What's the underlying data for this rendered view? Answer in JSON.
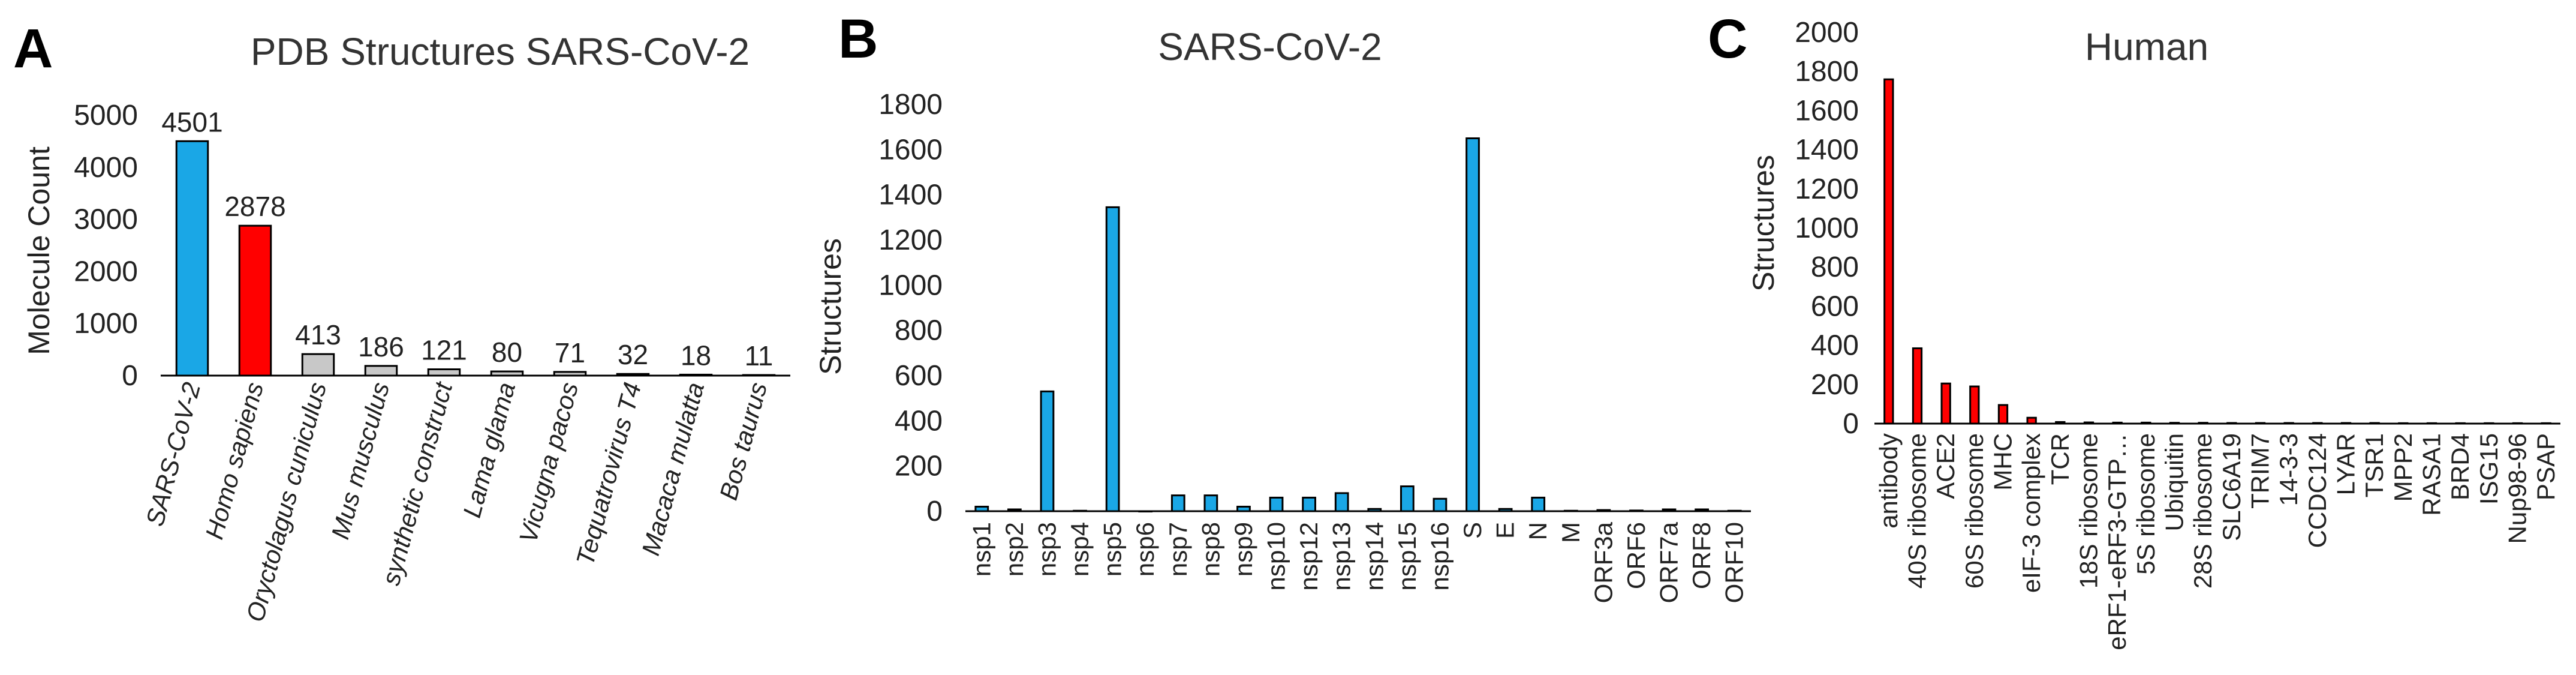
{
  "chart_data": [
    {
      "type": "bar",
      "panel": "A",
      "title": "PDB Structures SARS-CoV-2",
      "xlabel": "",
      "ylabel": "Molecule Count",
      "ylim": [
        0,
        5000
      ],
      "yticks": [
        0,
        1000,
        2000,
        3000,
        4000,
        5000
      ],
      "italic_categories": true,
      "show_values": true,
      "categories": [
        "SARS-CoV-2",
        "Homo sapiens",
        "Oryctolagus cuniculus",
        "Mus musculus",
        "synthetic construct",
        "Lama glama",
        "Vicugna pacos",
        "Tequatrovirus T4",
        "Macaca mulatta",
        "Bos taurus"
      ],
      "values": [
        4501,
        2878,
        413,
        186,
        121,
        80,
        71,
        32,
        18,
        11
      ],
      "colors": [
        "#1aa7e6",
        "#ff0000",
        "#c8c8c8",
        "#c8c8c8",
        "#c8c8c8",
        "#c8c8c8",
        "#c8c8c8",
        "#c8c8c8",
        "#c8c8c8",
        "#c8c8c8"
      ]
    },
    {
      "type": "bar",
      "panel": "B",
      "title": "SARS-CoV-2",
      "xlabel": "",
      "ylabel": "Structures",
      "ylim": [
        0,
        1800
      ],
      "yticks": [
        0,
        200,
        400,
        600,
        800,
        1000,
        1200,
        1400,
        1600,
        1800
      ],
      "italic_categories": false,
      "show_values": false,
      "categories": [
        "nsp1",
        "nsp2",
        "nsp3",
        "nsp4",
        "nsp5",
        "nsp6",
        "nsp7",
        "nsp8",
        "nsp9",
        "nsp10",
        "nsp12",
        "nsp13",
        "nsp14",
        "nsp15",
        "nsp16",
        "S",
        "E",
        "N",
        "M",
        "ORF3a",
        "ORF6",
        "ORF7a",
        "ORF8",
        "ORF10"
      ],
      "values": [
        20,
        8,
        530,
        2,
        1345,
        0,
        70,
        70,
        20,
        60,
        60,
        80,
        10,
        110,
        55,
        1650,
        10,
        60,
        2,
        5,
        3,
        8,
        8,
        2
      ],
      "colors": [
        "#1aa7e6"
      ]
    },
    {
      "type": "bar",
      "panel": "C",
      "title": "Human",
      "xlabel": "",
      "ylabel": "Structures",
      "ylim": [
        0,
        2000
      ],
      "yticks": [
        0,
        200,
        400,
        600,
        800,
        1000,
        1200,
        1400,
        1600,
        1800,
        2000
      ],
      "italic_categories": false,
      "show_values": false,
      "categories": [
        "antibody",
        "40S ribosome",
        "ACE2",
        "60S ribosome",
        "MHC",
        "eIF-3 complex",
        "TCR",
        "18S ribosome",
        "eRF1-eRF3-GTP…",
        "5S ribosome",
        "Ubiquitin",
        "28S ribosome",
        "SLC6A19",
        "TRIM7",
        "14-3-3",
        "CCDC124",
        "LYAR",
        "TSR1",
        "MPP2",
        "RASA1",
        "BRD4",
        "ISG15",
        "Nup98-96",
        "PSAP"
      ],
      "values": [
        1760,
        385,
        205,
        190,
        95,
        30,
        8,
        6,
        5,
        5,
        4,
        4,
        3,
        3,
        3,
        3,
        3,
        3,
        2,
        2,
        2,
        2,
        2,
        2
      ],
      "colors": [
        "#ff0000"
      ]
    }
  ]
}
